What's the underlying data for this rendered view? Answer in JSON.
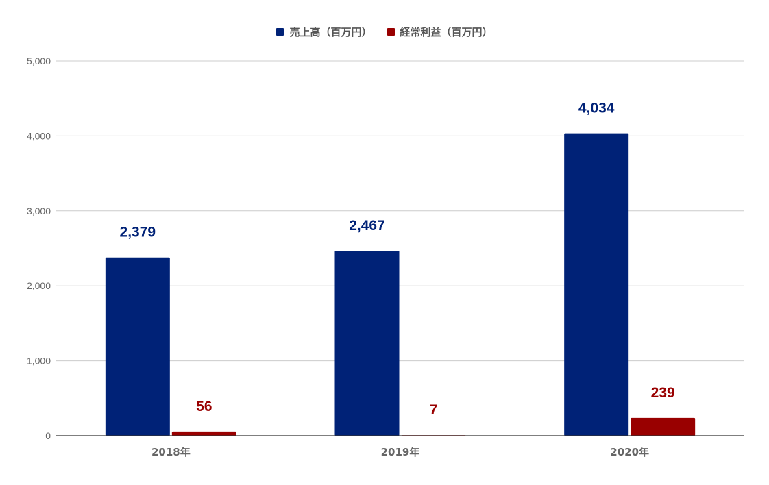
{
  "chart_data": {
    "type": "bar",
    "categories": [
      "2018年",
      "2019年",
      "2020年"
    ],
    "series": [
      {
        "name": "売上高（百万円）",
        "values": [
          2379,
          2467,
          4034
        ],
        "labels": [
          "2,379",
          "2,467",
          "4,034"
        ],
        "color": "#002277"
      },
      {
        "name": "経常利益（百万円）",
        "values": [
          56,
          7,
          239
        ],
        "labels": [
          "56",
          "7",
          "239"
        ],
        "color": "#990000"
      }
    ],
    "title": "",
    "xlabel": "",
    "ylabel": "",
    "ylim": [
      0,
      5000
    ],
    "yticks": [
      0,
      1000,
      2000,
      3000,
      4000,
      5000
    ],
    "ytick_labels": [
      "0",
      "1,000",
      "2,000",
      "3,000",
      "4,000",
      "5,000"
    ],
    "grid": true,
    "legend_position": "top-center",
    "colors": {
      "grid": "#cccccc",
      "axis": "#333333",
      "tick_text": "#666666"
    }
  }
}
